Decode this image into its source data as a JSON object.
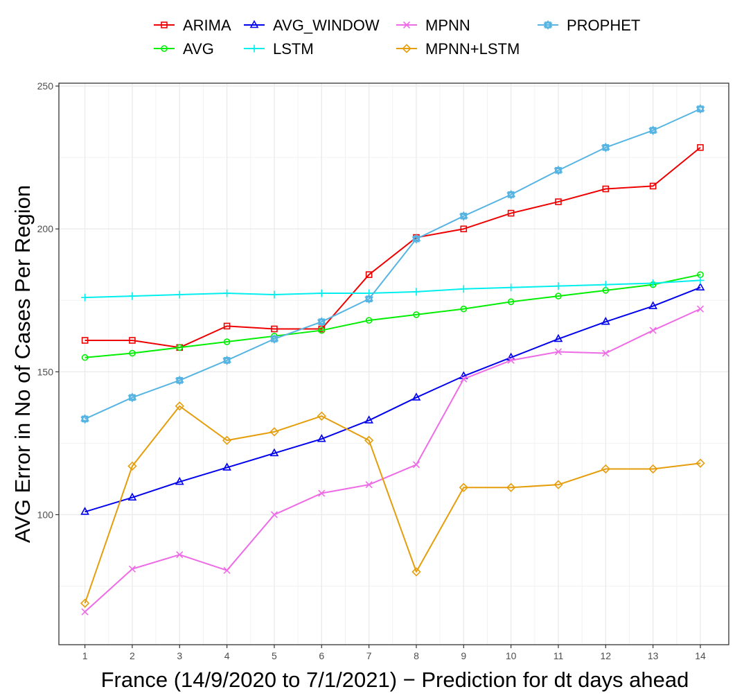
{
  "chart_data": {
    "type": "line",
    "xlabel": "France (14/9/2020 to 7/1/2021) − Prediction for dt days ahead",
    "ylabel": "AVG Error in No of Cases Per Region",
    "x": [
      1,
      2,
      3,
      4,
      5,
      6,
      7,
      8,
      9,
      10,
      11,
      12,
      13,
      14
    ],
    "xlim": [
      0.45,
      14.6
    ],
    "ylim": [
      54.5,
      251
    ],
    "yticks": [
      100,
      150,
      200,
      250
    ],
    "grid": true,
    "legend_position": "top",
    "series": [
      {
        "name": "ARIMA",
        "color": "#ee0000",
        "marker": "square",
        "values": [
          161,
          161,
          158.5,
          166,
          165,
          165,
          184,
          197,
          200,
          205.5,
          209.5,
          214,
          215,
          228.5
        ]
      },
      {
        "name": "AVG",
        "color": "#00ee00",
        "marker": "circle",
        "values": [
          155,
          156.5,
          158.5,
          160.5,
          162.5,
          164.5,
          168,
          170,
          172,
          174.5,
          176.5,
          178.5,
          180.5,
          184
        ]
      },
      {
        "name": "AVG_WINDOW",
        "color": "#0000ee",
        "marker": "triangle",
        "values": [
          101,
          106,
          111.5,
          116.5,
          121.5,
          126.5,
          133,
          141,
          148.5,
          155,
          161.5,
          167.5,
          173,
          179.5
        ]
      },
      {
        "name": "LSTM",
        "color": "#00eeee",
        "marker": "plus",
        "values": [
          176,
          176.5,
          177,
          177.5,
          177,
          177.5,
          177.5,
          178,
          179,
          179.5,
          180,
          180.5,
          181,
          182
        ]
      },
      {
        "name": "MPNN",
        "color": "#ee6be6",
        "marker": "cross",
        "values": [
          66,
          81,
          86,
          80.5,
          100,
          107.5,
          110.5,
          117.5,
          147.5,
          154,
          157,
          156.5,
          164.5,
          172
        ]
      },
      {
        "name": "MPNN+LSTM",
        "color": "#e59d0a",
        "marker": "diamond",
        "values": [
          69,
          117,
          138,
          126,
          129,
          134.5,
          126,
          80,
          109.5,
          109.5,
          110.5,
          116,
          116,
          118
        ]
      },
      {
        "name": "PROPHET",
        "color": "#56b4e2",
        "marker": "star",
        "values": [
          133.5,
          141,
          147,
          154,
          161.5,
          167.5,
          175.5,
          196.5,
          204.5,
          212,
          220.5,
          228.5,
          234.5,
          242
        ]
      }
    ]
  }
}
